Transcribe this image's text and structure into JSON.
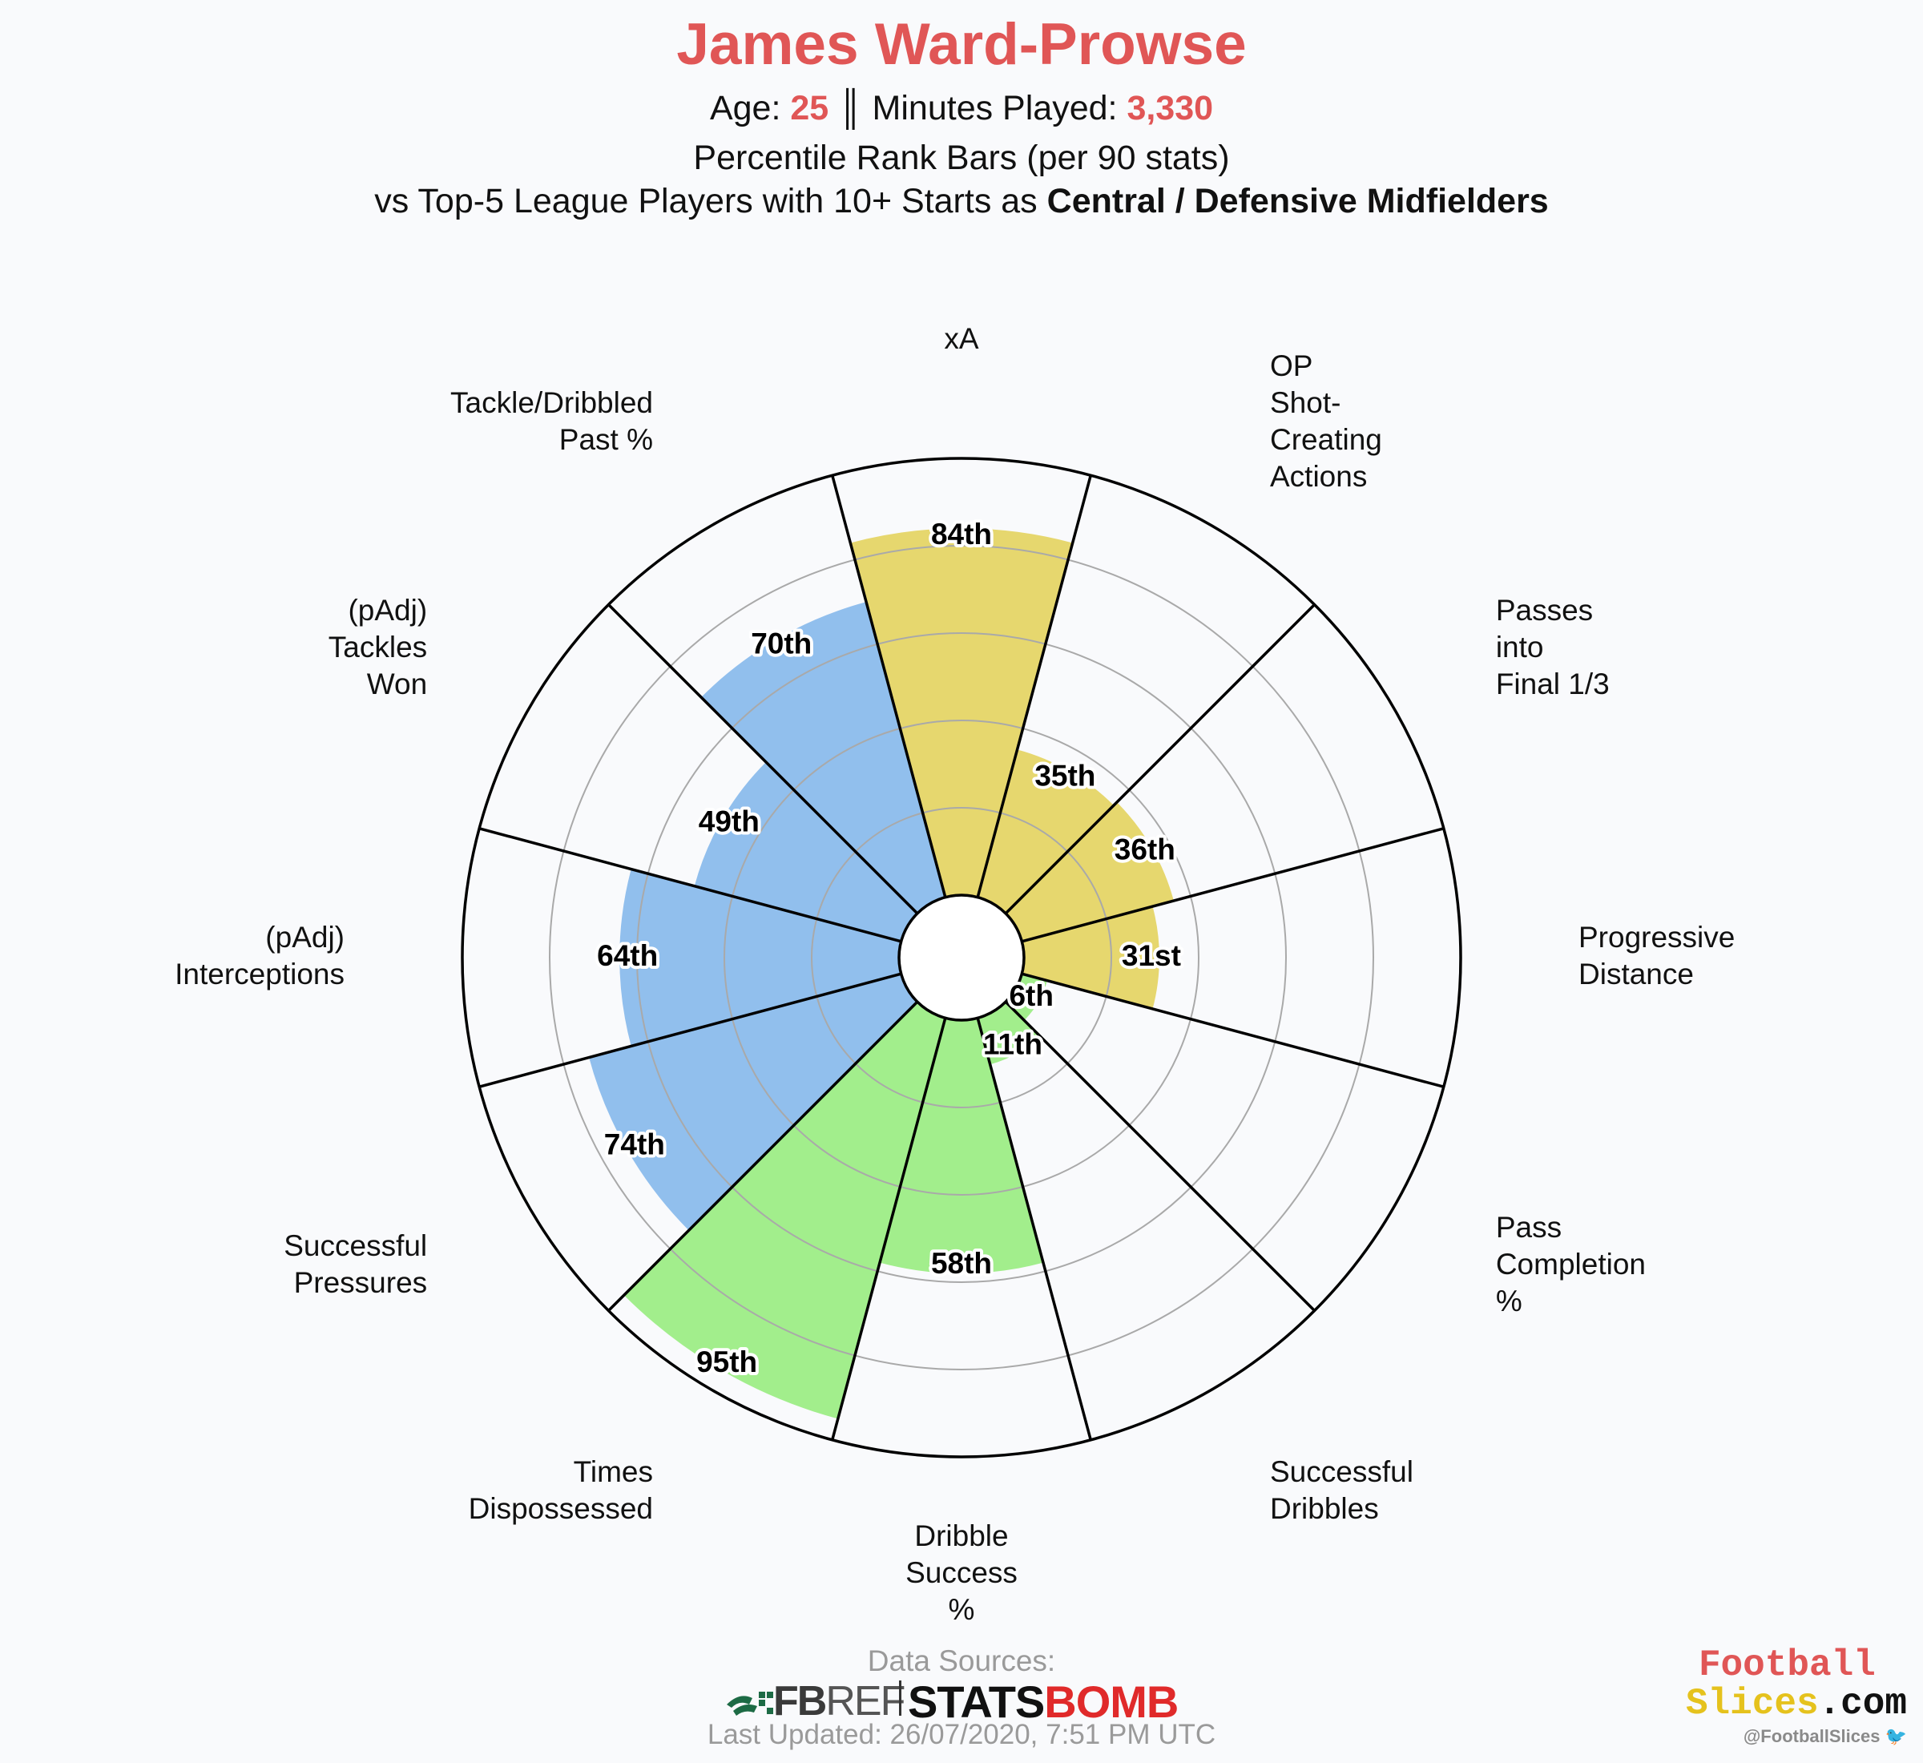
{
  "header": {
    "title": "James Ward-Prowse",
    "age_label": "Age: ",
    "age": "25",
    "separator": " ║ ",
    "minutes_label": "Minutes Played: ",
    "minutes": "3,330",
    "line2": "Percentile Rank Bars (per 90 stats)",
    "line3_prefix": "vs Top-5 League Players with 10+ Starts as ",
    "line3_bold": "Central / Defensive Midfielders"
  },
  "chart_data": {
    "type": "bar",
    "polar": true,
    "rmax": 100,
    "grid_rings": [
      20,
      40,
      60,
      80
    ],
    "grid": true,
    "categories": [
      "xA",
      "OP Shot-Creating Actions",
      "Passes into Final 1/3",
      "Progressive Distance",
      "Pass Completion %",
      "Successful Dribbles",
      "Dribble Success %",
      "Times Dispossessed",
      "Successful Pressures",
      "(pAdj) Interceptions",
      "(pAdj) Tackles Won",
      "Tackle/Dribbled Past %"
    ],
    "values": [
      84,
      35,
      36,
      31,
      6,
      11,
      58,
      95,
      74,
      64,
      49,
      70
    ],
    "value_labels": [
      "84th",
      "35th",
      "36th",
      "31st",
      "6th",
      "11th",
      "58th",
      "95th",
      "74th",
      "64th",
      "49th",
      "70th"
    ],
    "axis_labels": [
      [
        "xA"
      ],
      [
        "OP",
        "Shot-",
        "Creating",
        "Actions"
      ],
      [
        "Passes",
        "into",
        "Final 1/3"
      ],
      [
        "Progressive",
        "Distance"
      ],
      [
        "Pass",
        "Completion",
        "%"
      ],
      [
        "Successful",
        "Dribbles"
      ],
      [
        "Dribble",
        "Success",
        "%"
      ],
      [
        "Times",
        "Dispossessed"
      ],
      [
        "Successful",
        "Pressures"
      ],
      [
        "(pAdj)",
        "Interceptions"
      ],
      [
        "(pAdj)",
        "Tackles",
        "Won"
      ],
      [
        "Tackle/Dribbled",
        "Past %"
      ]
    ],
    "colors": [
      "#e6d76e",
      "#e6d76e",
      "#e6d76e",
      "#e6d76e",
      "#a2ee8c",
      "#a2ee8c",
      "#a2ee8c",
      "#a2ee8c",
      "#91bfed",
      "#91bfed",
      "#91bfed",
      "#91bfed"
    ]
  },
  "footer": {
    "sources_label": "Data Sources:",
    "fbref_a": "FB",
    "fbref_b": "REF",
    "statsbomb_a": "STATS",
    "statsbomb_b": "BOMB",
    "updated": "Last Updated: 26/07/2020, 7:51 PM UTC"
  },
  "brand": {
    "line1": "Football",
    "line2a": "Slices",
    "line2b": ".com",
    "handle": "@FootballSlices",
    "twitter_glyph": "🐦"
  }
}
